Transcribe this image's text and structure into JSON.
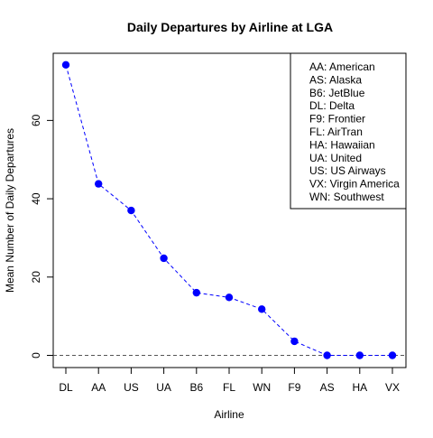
{
  "chart_data": {
    "type": "line",
    "title": "Daily Departures by Airline at LGA",
    "xlabel": "Airline",
    "ylabel": "Mean Number of Daily Departures",
    "categories": [
      "DL",
      "AA",
      "US",
      "UA",
      "B6",
      "FL",
      "WN",
      "F9",
      "AS",
      "HA",
      "VX"
    ],
    "values": [
      74.2,
      43.8,
      37.0,
      24.8,
      16.0,
      14.8,
      11.8,
      3.6,
      0,
      0,
      0
    ],
    "ylim": [
      0,
      74.2
    ],
    "yticks": [
      0,
      20,
      40,
      60
    ],
    "reference_line": 0,
    "grid": false,
    "legend_position": "top-right",
    "legend": [
      "AA: American",
      "AS: Alaska",
      "B6: JetBlue",
      "DL: Delta",
      "F9: Frontier",
      "FL: AirTran",
      "HA: Hawaiian",
      "UA: United",
      "US: US Airways",
      "VX: Virgin America",
      "WN: Southwest"
    ],
    "colors": {
      "series": "#0000ff",
      "reference_line": "#555555",
      "axis": "#000000"
    }
  }
}
